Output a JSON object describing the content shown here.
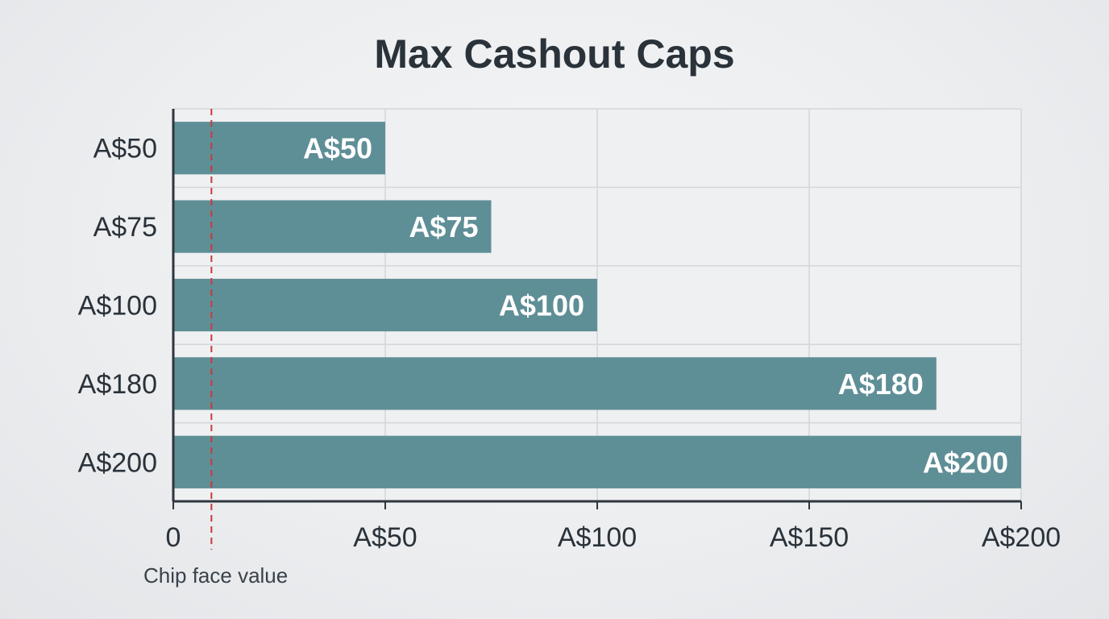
{
  "chart_data": {
    "type": "bar",
    "orientation": "horizontal",
    "title": "Max Cashout Caps",
    "categories": [
      "A$50",
      "A$75",
      "A$100",
      "A$180",
      "A$200"
    ],
    "values": [
      50,
      75,
      100,
      180,
      200
    ],
    "bar_labels": [
      "A$50",
      "A$75",
      "A$100",
      "A$180",
      "A$200"
    ],
    "xlim": [
      0,
      200
    ],
    "xticks": [
      0,
      50,
      100,
      150,
      200
    ],
    "xtick_labels": [
      "0",
      "A$50",
      "A$100",
      "A$150",
      "A$200"
    ],
    "grid": true,
    "reference_line": {
      "value": 9,
      "label": "Chip face value",
      "style": "dashed",
      "color": "#c9393b"
    },
    "bar_color": "#5f8f96"
  }
}
